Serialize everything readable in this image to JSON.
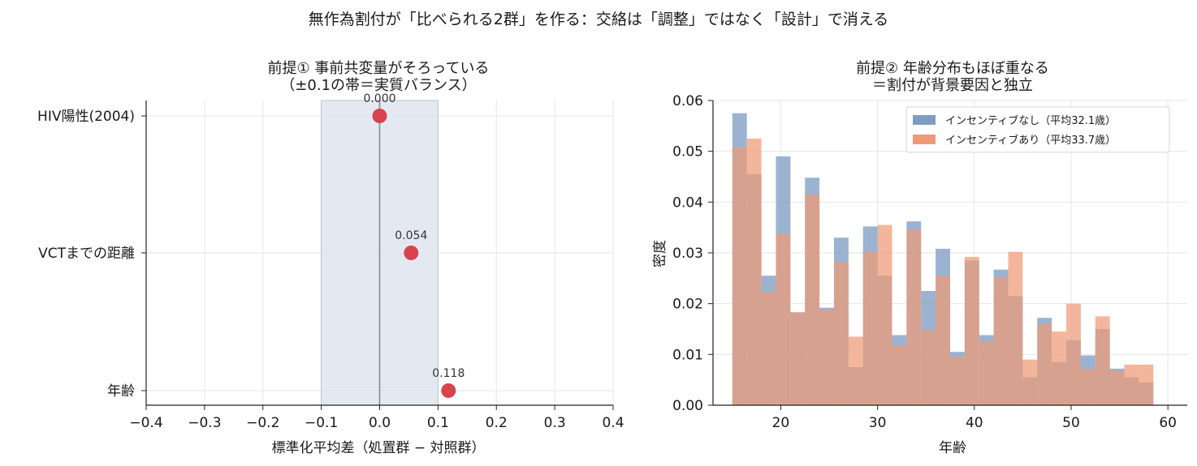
{
  "suptitle": "無作為割付が「比べられる2群」を作る：交絡は「調整」ではなく「設計」で消える",
  "colors": {
    "point": "#d9434e",
    "band": "#dde4ee",
    "zero_line": "#7f8c99",
    "hist_a": "#7f9dc3",
    "hist_b": "#ee9a76"
  },
  "chart_data": [
    {
      "type": "scatter",
      "title_line1": "前提① 事前共変量がそろっている",
      "title_line2": "（±0.1の帯＝実質バランス）",
      "xlabel": "標準化平均差（処置群 − 対照群）",
      "ylabel": "",
      "xlim": [
        -0.4,
        0.4
      ],
      "xticks": [
        "−0.4",
        "−0.3",
        "−0.2",
        "−0.1",
        "0.0",
        "0.1",
        "0.2",
        "0.3",
        "0.4"
      ],
      "xtick_values": [
        -0.4,
        -0.3,
        -0.2,
        -0.1,
        0.0,
        0.1,
        0.2,
        0.3,
        0.4
      ],
      "band": [
        -0.1,
        0.1
      ],
      "grid": true,
      "categories": [
        "HIV陽性(2004)",
        "VCTまでの距離",
        "年齢"
      ],
      "values": [
        0.0,
        0.054,
        0.118
      ],
      "value_labels": [
        "0.000",
        "0.054",
        "0.118"
      ]
    },
    {
      "type": "bar",
      "subtype": "histogram",
      "title_line1": "前提② 年齢分布もほぼ重なる",
      "title_line2": "＝割付が背景要因と独立",
      "xlabel": "年齢",
      "ylabel": "密度",
      "xlim": [
        13,
        62
      ],
      "ylim": [
        0,
        0.06
      ],
      "xticks": [
        "20",
        "30",
        "40",
        "50",
        "60"
      ],
      "xtick_values": [
        20,
        30,
        40,
        50,
        60
      ],
      "yticks": [
        "0.00",
        "0.01",
        "0.02",
        "0.03",
        "0.04",
        "0.05",
        "0.06"
      ],
      "ytick_values": [
        0,
        0.01,
        0.02,
        0.03,
        0.04,
        0.05,
        0.06
      ],
      "grid": true,
      "legend_position": "top-right",
      "bin_start": 15,
      "bin_width": 1.5,
      "series": [
        {
          "name": "インセンティブなし（平均32.1歳）",
          "values": [
            0.0575,
            0.0455,
            0.0255,
            0.049,
            0.0183,
            0.0448,
            0.0192,
            0.033,
            0.0075,
            0.0352,
            0.0255,
            0.0138,
            0.0362,
            0.0225,
            0.0308,
            0.0105,
            0.0285,
            0.0138,
            0.0267,
            0.0215,
            0.0055,
            0.0172,
            0.0085,
            0.0128,
            0.0098,
            0.015,
            0.0072,
            0.0055,
            0.0045
          ]
        },
        {
          "name": "インセンティブあり（平均33.7歳）",
          "values": [
            0.0508,
            0.0525,
            0.0225,
            0.0338,
            0.0183,
            0.0415,
            0.0188,
            0.0282,
            0.0135,
            0.0302,
            0.0355,
            0.0118,
            0.0345,
            0.0148,
            0.0255,
            0.0095,
            0.0292,
            0.0125,
            0.0252,
            0.0302,
            0.009,
            0.016,
            0.0145,
            0.02,
            0.0072,
            0.0175,
            0.0068,
            0.008,
            0.008
          ]
        }
      ]
    }
  ]
}
